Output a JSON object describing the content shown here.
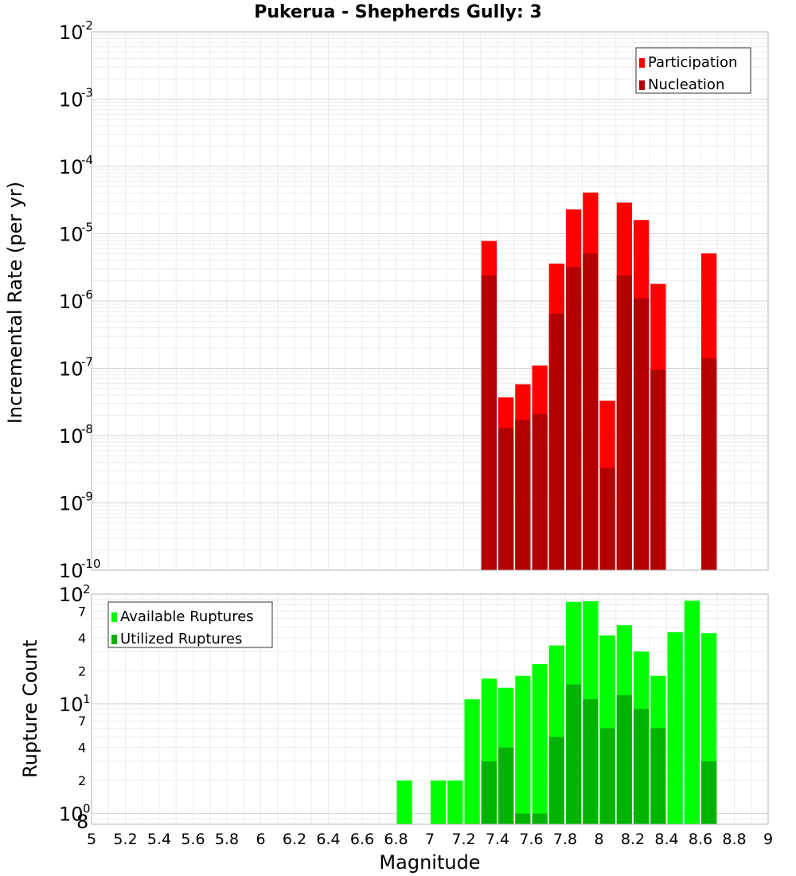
{
  "chart_data": [
    {
      "type": "bar",
      "title": "Pukerua - Shepherds Gully: 3",
      "ylabel": "Incremental Rate (per yr)",
      "yscale": "log",
      "ylim": [
        1e-10,
        0.01
      ],
      "xlim": [
        5,
        9
      ],
      "bin_width": 0.1,
      "grid": true,
      "legend_placement": "top-right",
      "x": [
        7.35,
        7.45,
        7.55,
        7.65,
        7.75,
        7.85,
        7.95,
        8.05,
        8.15,
        8.25,
        8.35,
        8.65
      ],
      "series": [
        {
          "name": "Participation",
          "color": "#ff0000",
          "values": [
            7.8e-06,
            3.7e-08,
            5.8e-08,
            1.1e-07,
            3.6e-06,
            2.3e-05,
            4.1e-05,
            3.3e-08,
            2.9e-05,
            1.6e-05,
            1.8e-06,
            5.1e-06
          ]
        },
        {
          "name": "Nucleation",
          "color": "#b30000",
          "values": [
            2.4e-06,
            1.3e-08,
            1.7e-08,
            2.1e-08,
            6.5e-07,
            3.2e-06,
            5.1e-06,
            3.3e-09,
            2.4e-06,
            1.1e-06,
            9.5e-08,
            1.4e-07
          ]
        }
      ]
    },
    {
      "type": "bar",
      "xlabel": "Magnitude",
      "ylabel": "Rupture Count",
      "yscale": "log",
      "ylim": [
        0.8,
        100
      ],
      "xlim": [
        5,
        9
      ],
      "bin_width": 0.1,
      "grid": true,
      "legend_placement": "top-left",
      "x": [
        6.85,
        7.05,
        7.15,
        7.25,
        7.35,
        7.45,
        7.55,
        7.65,
        7.75,
        7.85,
        7.95,
        8.05,
        8.15,
        8.25,
        8.35,
        8.45,
        8.55,
        8.65
      ],
      "series": [
        {
          "name": "Available Ruptures",
          "color": "#00ff00",
          "values": [
            2,
            2,
            2,
            11,
            17,
            14,
            18,
            23,
            34,
            85,
            86,
            42,
            52,
            30,
            18,
            45,
            87,
            44
          ]
        },
        {
          "name": "Utilized Ruptures",
          "color": "#00b300",
          "values": [
            0,
            0,
            0,
            0,
            3,
            4,
            1,
            1,
            5,
            15,
            11,
            6,
            12,
            9,
            6,
            0,
            0,
            3
          ]
        }
      ]
    }
  ],
  "x_ticks": [
    "5",
    "5.2",
    "5.4",
    "5.6",
    "5.8",
    "6",
    "6.2",
    "6.4",
    "6.6",
    "6.8",
    "7",
    "7.2",
    "7.4",
    "7.6",
    "7.8",
    "8",
    "8.2",
    "8.4",
    "8.6",
    "8.8",
    "9"
  ],
  "top_y_ticks": [
    {
      "base": "10",
      "exp": "-2"
    },
    {
      "base": "10",
      "exp": "-3"
    },
    {
      "base": "10",
      "exp": "-4"
    },
    {
      "base": "10",
      "exp": "-5"
    },
    {
      "base": "10",
      "exp": "-6"
    },
    {
      "base": "10",
      "exp": "-7"
    },
    {
      "base": "10",
      "exp": "-8"
    },
    {
      "base": "10",
      "exp": "-9"
    },
    {
      "base": "10",
      "exp": "-10"
    }
  ],
  "bottom_y_ticks": {
    "major": [
      {
        "base": "10",
        "exp": "2"
      },
      {
        "base": "10",
        "exp": "1"
      },
      {
        "base": "10",
        "exp": "0"
      }
    ],
    "minor": [
      "7",
      "4",
      "2",
      "7",
      "4",
      "2",
      "8"
    ]
  }
}
